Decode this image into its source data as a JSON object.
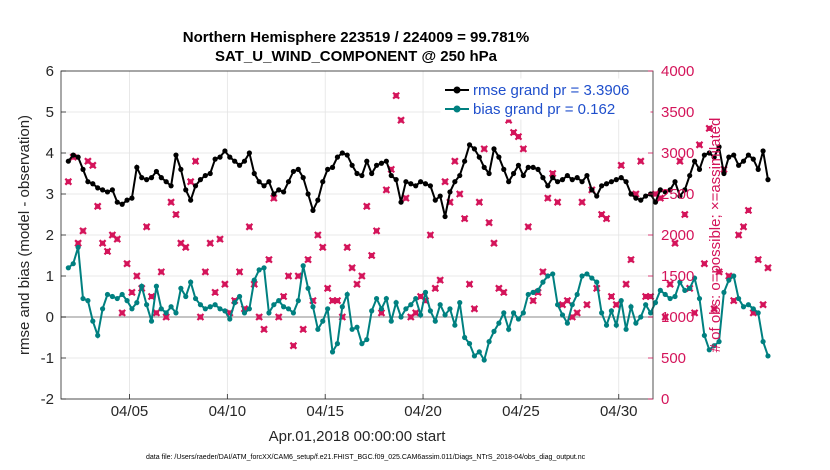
{
  "chart_data": {
    "type": "line",
    "title_line1": "Northern Hemisphere 223519 / 224009 = 99.781%",
    "title_line2": "SAT_U_WIND_COMPONENT @ 250 hPa",
    "xlabel": "Apr.01,2018 00:00:00 start",
    "ylabel_left": "rmse and bias (model - observation)",
    "ylabel_right": "# of obs: o=possible; ×=assimilated",
    "footnote": "data file: /Users/raeder/DAI/ATM_forcXX/CAM6_setup/f.e21.FHIST_BGC.f09_025.CAM6assim.011/Diags_NTrS_2018-04/obs_diag_output.nc",
    "x_range_days": [
      0.5,
      30.75
    ],
    "y_left_range": [
      -2,
      6
    ],
    "y_left_ticks": [
      "-2",
      "-1",
      "0",
      "1",
      "2",
      "3",
      "4",
      "5",
      "6"
    ],
    "y_right_range": [
      0,
      4000
    ],
    "y_right_ticks": [
      "0",
      "500",
      "1000",
      "1500",
      "2000",
      "2500",
      "3000",
      "3500",
      "4000"
    ],
    "x_ticks": [
      {
        "day": 4,
        "label": "04/05"
      },
      {
        "day": 9,
        "label": "04/10"
      },
      {
        "day": 14,
        "label": "04/15"
      },
      {
        "day": 19,
        "label": "04/20"
      },
      {
        "day": 24,
        "label": "04/25"
      },
      {
        "day": 29,
        "label": "04/30"
      }
    ],
    "time_step_days": 0.25,
    "series": [
      {
        "name": "rmse",
        "legend": "rmse grand pr = 3.3906",
        "color": "#000000",
        "values": [
          3.8,
          3.95,
          3.9,
          3.6,
          3.3,
          3.25,
          3.15,
          3.1,
          3.05,
          3.1,
          2.8,
          2.75,
          2.85,
          2.9,
          3.65,
          3.4,
          3.35,
          3.4,
          3.55,
          3.4,
          3.3,
          3.2,
          3.95,
          3.6,
          3.1,
          2.85,
          3.2,
          3.35,
          3.45,
          3.5,
          3.85,
          3.9,
          4.05,
          3.9,
          3.8,
          3.7,
          3.8,
          4.0,
          3.5,
          3.3,
          3.2,
          3.3,
          3.0,
          3.1,
          3.05,
          3.3,
          3.55,
          3.6,
          3.4,
          3.0,
          2.6,
          2.85,
          3.3,
          3.6,
          3.65,
          3.9,
          4.0,
          3.95,
          3.7,
          3.5,
          3.45,
          3.8,
          3.5,
          3.7,
          3.75,
          3.8,
          3.45,
          3.35,
          2.8,
          3.3,
          3.25,
          3.2,
          3.3,
          3.25,
          3.2,
          2.85,
          2.95,
          2.45,
          3.05,
          3.3,
          3.45,
          3.8,
          4.2,
          4.1,
          3.9,
          3.65,
          3.5,
          4.1,
          3.9,
          3.6,
          3.3,
          3.5,
          3.7,
          3.45,
          3.65,
          3.65,
          3.6,
          3.4,
          3.2,
          3.4,
          3.3,
          3.35,
          3.45,
          3.35,
          3.4,
          3.3,
          3.45,
          3.1,
          2.95,
          3.2,
          3.25,
          3.3,
          3.35,
          3.4,
          3.3,
          3.0,
          2.9,
          2.85,
          2.95,
          3.0,
          2.8,
          3.1,
          3.05,
          3.1,
          3.3,
          2.95,
          3.1,
          3.45,
          3.8,
          3.6,
          3.95,
          4.0,
          3.9,
          4.15,
          3.5,
          3.9,
          3.95,
          3.7,
          3.8,
          3.95,
          3.85,
          3.6,
          4.05,
          3.35
        ]
      },
      {
        "name": "bias",
        "legend": "bias grand pr = 0.162",
        "color": "#008080",
        "values": [
          1.2,
          1.3,
          1.7,
          0.45,
          0.4,
          -0.1,
          -0.45,
          0.2,
          0.55,
          0.5,
          0.45,
          0.55,
          0.4,
          0.2,
          0.35,
          0.75,
          0.3,
          -0.1,
          0.75,
          0.2,
          0.1,
          0.25,
          0.1,
          0.7,
          0.5,
          0.85,
          0.45,
          0.3,
          0.2,
          0.25,
          0.3,
          0.2,
          0.15,
          -0.05,
          0.35,
          0.5,
          0.1,
          0.2,
          0.9,
          1.15,
          1.2,
          0.1,
          0.3,
          0.4,
          0.25,
          0.2,
          0.1,
          0.4,
          1.25,
          0.7,
          0.25,
          -0.3,
          -0.1,
          0.2,
          -0.85,
          -0.65,
          0.25,
          0.55,
          -0.3,
          -0.25,
          -0.65,
          -0.55,
          0.15,
          0.45,
          0.2,
          0.45,
          -0.1,
          0.35,
          0.0,
          0.2,
          0.3,
          0.45,
          0.05,
          0.6,
          0.15,
          -0.1,
          0.3,
          0.05,
          0.2,
          -0.2,
          0.35,
          -0.5,
          -0.65,
          -0.95,
          -0.85,
          -1.05,
          -0.6,
          -0.35,
          -0.15,
          0.1,
          -0.3,
          0.1,
          -0.05,
          0.1,
          0.55,
          0.6,
          0.65,
          0.85,
          1.0,
          1.05,
          0.3,
          0.05,
          -0.15,
          0.3,
          0.55,
          1.0,
          1.05,
          0.95,
          0.85,
          0.1,
          -0.2,
          0.15,
          -0.2,
          0.4,
          -0.3,
          0.25,
          -0.15,
          0.0,
          0.3,
          0.1,
          0.35,
          0.65,
          0.55,
          0.45,
          0.5,
          0.85,
          0.65,
          0.7,
          0.95,
          0.45,
          -0.45,
          -0.8,
          -0.7,
          -0.6,
          0.6,
          0.9,
          1.0,
          0.45,
          0.25,
          0.3,
          0.2,
          0.1,
          -0.6,
          -0.95
        ]
      },
      {
        "name": "obs possible / assimilated (right axis)",
        "color": "#d4145a",
        "axis": "right",
        "values": [
          2650,
          2950,
          1900,
          2050,
          2900,
          2850,
          2350,
          1900,
          1800,
          2000,
          1950,
          1050,
          1650,
          1300,
          1500,
          1350,
          2100,
          1250,
          1050,
          1550,
          1000,
          2400,
          2250,
          1900,
          1850,
          2650,
          2900,
          1000,
          1550,
          1900,
          1300,
          1950,
          1400,
          1050,
          1200,
          1550,
          1100,
          2100,
          1400,
          1000,
          850,
          1700,
          2450,
          1000,
          1250,
          1500,
          650,
          1500,
          850,
          1700,
          1200,
          2000,
          1850,
          1350,
          1200,
          1200,
          1000,
          1850,
          1600,
          1400,
          1500,
          2350,
          1750,
          2050,
          1050,
          2550,
          2800,
          3700,
          3400,
          2450,
          1000,
          1050,
          1250,
          1200,
          2000,
          1350,
          1450,
          2650,
          2400,
          2900,
          2500,
          2200,
          1400,
          1100,
          2400,
          3050,
          2150,
          1900,
          1350,
          1300,
          3400,
          3250,
          3200,
          3050,
          2100,
          1200,
          1300,
          1550,
          2450,
          2750,
          2400,
          1150,
          1200,
          1000,
          1050,
          2400,
          1150,
          2550,
          1350,
          2250,
          2200,
          1250,
          1150,
          2850,
          1400,
          1700,
          2500,
          2900,
          1250,
          1250,
          2500,
          2450,
          1000,
          1400,
          1900,
          2900,
          2250,
          1350,
          1050,
          3100,
          1650,
          3300,
          1100,
          1550,
          2800,
          1500,
          1200,
          2000,
          2100,
          2300,
          1050,
          1700,
          1150,
          1600
        ]
      }
    ],
    "zero_line": 0
  }
}
